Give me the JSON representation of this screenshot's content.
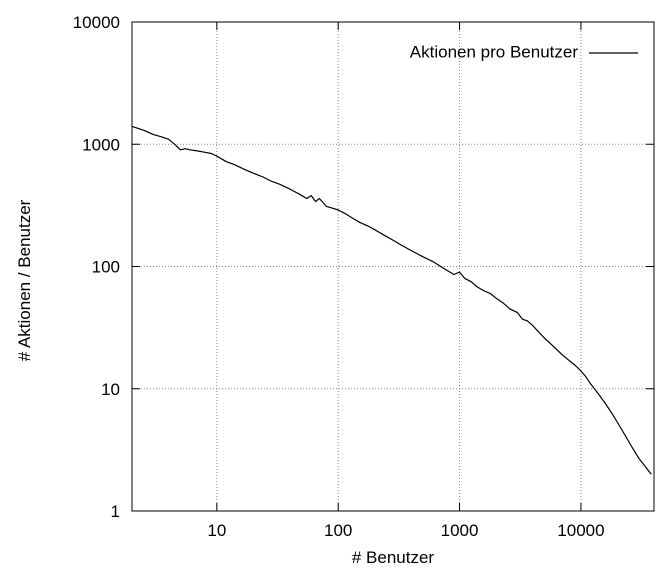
{
  "chart_data": {
    "type": "line",
    "title": "",
    "xlabel": "# Benutzer",
    "ylabel": "# Aktionen / Benutzer",
    "xscale": "log",
    "yscale": "log",
    "xlim": [
      2,
      40000
    ],
    "ylim": [
      1,
      10000
    ],
    "grid": true,
    "legend_position": "top-right",
    "x_ticks": [
      {
        "value": 10,
        "label": "10"
      },
      {
        "value": 100,
        "label": "100"
      },
      {
        "value": 1000,
        "label": "1000"
      },
      {
        "value": 10000,
        "label": "10000"
      }
    ],
    "y_ticks": [
      {
        "value": 1,
        "label": "1"
      },
      {
        "value": 10,
        "label": "10"
      },
      {
        "value": 100,
        "label": "100"
      },
      {
        "value": 1000,
        "label": "1000"
      },
      {
        "value": 10000,
        "label": "10000"
      }
    ],
    "series": [
      {
        "name": "Aktionen pro Benutzer",
        "color": "#000000",
        "x": [
          2,
          2.5,
          3,
          3.5,
          4,
          4.5,
          5,
          5.5,
          6,
          7,
          8,
          9,
          10,
          12,
          14,
          17,
          20,
          24,
          28,
          33,
          40,
          48,
          55,
          60,
          65,
          70,
          80,
          90,
          100,
          115,
          130,
          150,
          175,
          200,
          240,
          280,
          330,
          400,
          500,
          600,
          700,
          800,
          900,
          1000,
          1100,
          1250,
          1400,
          1600,
          1800,
          2000,
          2300,
          2600,
          3000,
          3300,
          3600,
          4000,
          4500,
          5000,
          6000,
          7000,
          8000,
          9000,
          10000,
          11000,
          12000,
          14000,
          16000,
          18000,
          20000,
          23000,
          26000,
          30000,
          34000,
          38000
        ],
        "y": [
          1400,
          1300,
          1200,
          1150,
          1100,
          1000,
          900,
          920,
          900,
          880,
          860,
          840,
          800,
          720,
          680,
          620,
          580,
          540,
          500,
          470,
          430,
          390,
          360,
          380,
          340,
          360,
          310,
          300,
          290,
          270,
          250,
          230,
          215,
          200,
          180,
          165,
          150,
          135,
          120,
          110,
          100,
          92,
          86,
          90,
          80,
          75,
          68,
          63,
          60,
          55,
          50,
          45,
          42,
          37,
          36,
          33,
          29,
          26,
          22,
          19,
          17,
          15.5,
          14,
          12.5,
          11,
          9,
          7.5,
          6.3,
          5.3,
          4.2,
          3.4,
          2.7,
          2.3,
          2
        ]
      }
    ]
  }
}
